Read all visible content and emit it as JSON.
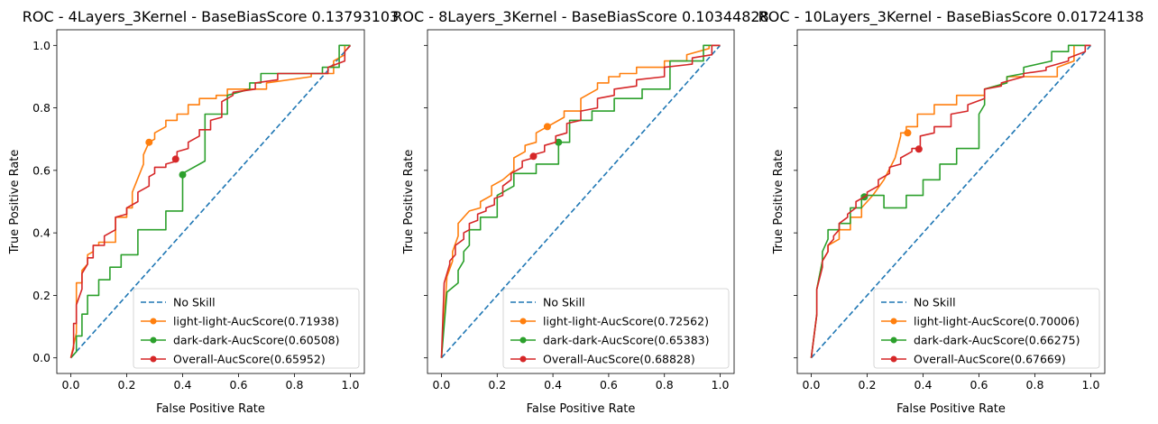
{
  "figure": {
    "panels": [
      {
        "title": "ROC - 4Layers_3Kernel - BaseBiasScore 0.13793103"
      },
      {
        "title": "ROC - 8Layers_3Kernel - BaseBiasScore 0.10344828"
      },
      {
        "title": "ROC - 10Layers_3Kernel - BaseBiasScore 0.01724138"
      }
    ]
  },
  "chart_data": [
    {
      "type": "line",
      "title": "ROC - 4Layers_3Kernel - BaseBiasScore 0.13793103",
      "xlabel": "False Positive Rate",
      "ylabel": "True Positive Rate",
      "xlim": [
        0,
        1
      ],
      "ylim": [
        0,
        1
      ],
      "xticks": [
        "0.0",
        "0.2",
        "0.4",
        "0.6",
        "0.8",
        "1.0"
      ],
      "yticks": [
        "0.0",
        "0.2",
        "0.4",
        "0.6",
        "0.8",
        "1.0"
      ],
      "grid": false,
      "legend": "lower right",
      "series": [
        {
          "name": "No Skill",
          "color": "#1f77b4",
          "dashed": true,
          "x": [
            0,
            1
          ],
          "y": [
            0,
            1
          ]
        },
        {
          "name": "light-light-AucScore(0.71938)",
          "color": "#ff7f0e",
          "x": [
            0,
            0.02,
            0.02,
            0.04,
            0.04,
            0.06,
            0.06,
            0.08,
            0.08,
            0.1,
            0.1,
            0.16,
            0.16,
            0.2,
            0.2,
            0.22,
            0.22,
            0.26,
            0.26,
            0.28,
            0.28,
            0.3,
            0.3,
            0.34,
            0.34,
            0.38,
            0.38,
            0.42,
            0.42,
            0.46,
            0.46,
            0.52,
            0.52,
            0.56,
            0.56,
            0.7,
            0.7,
            0.86,
            0.86,
            0.94,
            0.94,
            0.98,
            0.98,
            1.0
          ],
          "y": [
            0,
            0.08,
            0.24,
            0.24,
            0.28,
            0.3,
            0.33,
            0.34,
            0.36,
            0.36,
            0.37,
            0.37,
            0.45,
            0.45,
            0.48,
            0.48,
            0.53,
            0.62,
            0.65,
            0.69,
            0.69,
            0.7,
            0.72,
            0.74,
            0.76,
            0.76,
            0.78,
            0.78,
            0.81,
            0.81,
            0.83,
            0.83,
            0.84,
            0.84,
            0.86,
            0.86,
            0.88,
            0.9,
            0.91,
            0.91,
            0.95,
            0.97,
            1.0,
            1.0
          ],
          "marker": {
            "x": 0.28,
            "y": 0.69
          }
        },
        {
          "name": "dark-dark-AucScore(0.60508)",
          "color": "#2ca02c",
          "x": [
            0,
            0.02,
            0.02,
            0.04,
            0.04,
            0.06,
            0.06,
            0.1,
            0.1,
            0.14,
            0.14,
            0.18,
            0.18,
            0.24,
            0.24,
            0.34,
            0.34,
            0.4,
            0.4,
            0.48,
            0.48,
            0.56,
            0.56,
            0.64,
            0.64,
            0.68,
            0.68,
            0.9,
            0.9,
            0.96,
            0.96,
            1.0
          ],
          "y": [
            0,
            0.02,
            0.07,
            0.07,
            0.14,
            0.14,
            0.2,
            0.2,
            0.25,
            0.25,
            0.29,
            0.29,
            0.33,
            0.33,
            0.41,
            0.41,
            0.47,
            0.47,
            0.59,
            0.63,
            0.78,
            0.78,
            0.84,
            0.86,
            0.88,
            0.88,
            0.91,
            0.91,
            0.93,
            0.93,
            1.0,
            1.0
          ],
          "marker": {
            "x": 0.4,
            "y": 0.586
          }
        },
        {
          "name": "Overall-AucScore(0.65952)",
          "color": "#d62728",
          "x": [
            0,
            0.01,
            0.01,
            0.02,
            0.02,
            0.04,
            0.04,
            0.06,
            0.06,
            0.08,
            0.08,
            0.12,
            0.12,
            0.16,
            0.16,
            0.2,
            0.2,
            0.24,
            0.24,
            0.28,
            0.28,
            0.3,
            0.3,
            0.34,
            0.34,
            0.38,
            0.38,
            0.42,
            0.42,
            0.46,
            0.46,
            0.5,
            0.5,
            0.54,
            0.54,
            0.58,
            0.58,
            0.66,
            0.66,
            0.74,
            0.74,
            0.92,
            0.92,
            0.98,
            0.98,
            1.0
          ],
          "y": [
            0,
            0.03,
            0.11,
            0.11,
            0.17,
            0.22,
            0.27,
            0.3,
            0.32,
            0.32,
            0.36,
            0.36,
            0.39,
            0.41,
            0.45,
            0.46,
            0.48,
            0.5,
            0.53,
            0.55,
            0.58,
            0.59,
            0.61,
            0.61,
            0.62,
            0.63,
            0.66,
            0.67,
            0.69,
            0.71,
            0.73,
            0.73,
            0.76,
            0.77,
            0.82,
            0.84,
            0.85,
            0.86,
            0.88,
            0.89,
            0.91,
            0.91,
            0.93,
            0.95,
            0.98,
            1.0
          ],
          "marker": {
            "x": 0.375,
            "y": 0.636
          }
        }
      ]
    },
    {
      "type": "line",
      "title": "ROC - 8Layers_3Kernel - BaseBiasScore 0.10344828",
      "xlabel": "False Positive Rate",
      "ylabel": "True Positive Rate",
      "xlim": [
        0,
        1
      ],
      "ylim": [
        0,
        1
      ],
      "xticks": [
        "0.0",
        "0.2",
        "0.4",
        "0.6",
        "0.8",
        "1.0"
      ],
      "yticks": [],
      "grid": false,
      "legend": "lower right",
      "series": [
        {
          "name": "No Skill",
          "color": "#1f77b4",
          "dashed": true,
          "x": [
            0,
            1
          ],
          "y": [
            0,
            1
          ]
        },
        {
          "name": "light-light-AucScore(0.72562)",
          "color": "#ff7f0e",
          "x": [
            0,
            0.02,
            0.02,
            0.04,
            0.04,
            0.06,
            0.06,
            0.1,
            0.1,
            0.14,
            0.14,
            0.18,
            0.18,
            0.22,
            0.22,
            0.26,
            0.26,
            0.3,
            0.3,
            0.34,
            0.34,
            0.38,
            0.38,
            0.44,
            0.44,
            0.5,
            0.5,
            0.56,
            0.56,
            0.6,
            0.6,
            0.64,
            0.64,
            0.7,
            0.7,
            0.8,
            0.8,
            0.88,
            0.88,
            0.96,
            0.96,
            1.0
          ],
          "y": [
            0,
            0.26,
            0.26,
            0.31,
            0.34,
            0.39,
            0.43,
            0.47,
            0.47,
            0.48,
            0.5,
            0.52,
            0.55,
            0.57,
            0.57,
            0.6,
            0.64,
            0.66,
            0.68,
            0.69,
            0.72,
            0.74,
            0.74,
            0.77,
            0.79,
            0.79,
            0.83,
            0.86,
            0.88,
            0.88,
            0.9,
            0.9,
            0.91,
            0.91,
            0.93,
            0.93,
            0.95,
            0.95,
            0.97,
            0.99,
            1.0,
            1.0
          ],
          "marker": {
            "x": 0.38,
            "y": 0.74
          }
        },
        {
          "name": "dark-dark-AucScore(0.65383)",
          "color": "#2ca02c",
          "x": [
            0,
            0.02,
            0.02,
            0.06,
            0.06,
            0.08,
            0.08,
            0.1,
            0.1,
            0.14,
            0.14,
            0.2,
            0.2,
            0.26,
            0.26,
            0.34,
            0.34,
            0.42,
            0.42,
            0.46,
            0.46,
            0.54,
            0.54,
            0.62,
            0.62,
            0.72,
            0.72,
            0.82,
            0.82,
            0.94,
            0.94,
            1.0
          ],
          "y": [
            0,
            0.21,
            0.21,
            0.24,
            0.28,
            0.31,
            0.34,
            0.36,
            0.41,
            0.41,
            0.45,
            0.45,
            0.52,
            0.55,
            0.59,
            0.59,
            0.62,
            0.62,
            0.69,
            0.69,
            0.76,
            0.76,
            0.79,
            0.79,
            0.83,
            0.83,
            0.86,
            0.86,
            0.95,
            0.95,
            1.0,
            1.0
          ],
          "marker": {
            "x": 0.42,
            "y": 0.69
          }
        },
        {
          "name": "Overall-AucScore(0.68828)",
          "color": "#d62728",
          "x": [
            0,
            0.01,
            0.01,
            0.03,
            0.03,
            0.05,
            0.05,
            0.08,
            0.08,
            0.1,
            0.1,
            0.13,
            0.13,
            0.16,
            0.16,
            0.19,
            0.19,
            0.22,
            0.22,
            0.25,
            0.25,
            0.29,
            0.29,
            0.33,
            0.33,
            0.37,
            0.37,
            0.41,
            0.41,
            0.45,
            0.45,
            0.5,
            0.5,
            0.56,
            0.56,
            0.62,
            0.62,
            0.7,
            0.7,
            0.8,
            0.8,
            0.9,
            0.9,
            0.97,
            0.97,
            1.0
          ],
          "y": [
            0,
            0.24,
            0.24,
            0.3,
            0.31,
            0.33,
            0.36,
            0.38,
            0.4,
            0.41,
            0.43,
            0.44,
            0.46,
            0.47,
            0.48,
            0.49,
            0.51,
            0.52,
            0.55,
            0.57,
            0.59,
            0.61,
            0.63,
            0.64,
            0.65,
            0.66,
            0.68,
            0.69,
            0.71,
            0.72,
            0.75,
            0.76,
            0.79,
            0.8,
            0.83,
            0.84,
            0.86,
            0.87,
            0.89,
            0.9,
            0.93,
            0.94,
            0.96,
            0.97,
            1.0,
            1.0
          ],
          "marker": {
            "x": 0.33,
            "y": 0.645
          }
        }
      ]
    },
    {
      "type": "line",
      "title": "ROC - 10Layers_3Kernel - BaseBiasScore 0.01724138",
      "xlabel": "False Positive Rate",
      "ylabel": "True Positive Rate",
      "xlim": [
        0,
        1
      ],
      "ylim": [
        0,
        1
      ],
      "xticks": [
        "0.0",
        "0.2",
        "0.4",
        "0.6",
        "0.8",
        "1.0"
      ],
      "yticks": [],
      "grid": false,
      "legend": "lower right",
      "series": [
        {
          "name": "No Skill",
          "color": "#1f77b4",
          "dashed": true,
          "x": [
            0,
            1
          ],
          "y": [
            0,
            1
          ]
        },
        {
          "name": "light-light-AucScore(0.70006)",
          "color": "#ff7f0e",
          "x": [
            0,
            0.02,
            0.02,
            0.04,
            0.04,
            0.06,
            0.06,
            0.1,
            0.1,
            0.14,
            0.14,
            0.18,
            0.18,
            0.22,
            0.22,
            0.26,
            0.26,
            0.3,
            0.3,
            0.32,
            0.32,
            0.34,
            0.34,
            0.38,
            0.38,
            0.44,
            0.44,
            0.52,
            0.52,
            0.62,
            0.62,
            0.7,
            0.7,
            0.88,
            0.88,
            0.94,
            0.94,
            1.0
          ],
          "y": [
            0,
            0.14,
            0.22,
            0.31,
            0.31,
            0.34,
            0.36,
            0.38,
            0.41,
            0.41,
            0.45,
            0.45,
            0.48,
            0.52,
            0.52,
            0.57,
            0.57,
            0.64,
            0.64,
            0.71,
            0.72,
            0.72,
            0.74,
            0.74,
            0.78,
            0.78,
            0.81,
            0.81,
            0.84,
            0.84,
            0.86,
            0.88,
            0.9,
            0.9,
            0.93,
            0.95,
            1.0,
            1.0
          ],
          "marker": {
            "x": 0.345,
            "y": 0.72
          }
        },
        {
          "name": "dark-dark-AucScore(0.66275)",
          "color": "#2ca02c",
          "x": [
            0,
            0.02,
            0.02,
            0.04,
            0.04,
            0.06,
            0.06,
            0.1,
            0.1,
            0.14,
            0.14,
            0.18,
            0.18,
            0.26,
            0.26,
            0.34,
            0.34,
            0.4,
            0.4,
            0.46,
            0.46,
            0.52,
            0.52,
            0.6,
            0.6,
            0.62,
            0.62,
            0.7,
            0.7,
            0.76,
            0.76,
            0.86,
            0.86,
            0.92,
            0.92,
            1.0
          ],
          "y": [
            0,
            0.14,
            0.22,
            0.31,
            0.34,
            0.38,
            0.41,
            0.41,
            0.43,
            0.43,
            0.48,
            0.48,
            0.52,
            0.52,
            0.48,
            0.48,
            0.52,
            0.52,
            0.57,
            0.57,
            0.62,
            0.62,
            0.67,
            0.67,
            0.78,
            0.81,
            0.86,
            0.88,
            0.9,
            0.91,
            0.93,
            0.95,
            0.98,
            0.98,
            1.0,
            1.0
          ],
          "marker": {
            "x": 0.19,
            "y": 0.515
          }
        },
        {
          "name": "Overall-AucScore(0.67669)",
          "color": "#d62728",
          "x": [
            0,
            0.02,
            0.02,
            0.04,
            0.04,
            0.06,
            0.06,
            0.08,
            0.08,
            0.1,
            0.1,
            0.13,
            0.13,
            0.16,
            0.16,
            0.2,
            0.2,
            0.24,
            0.24,
            0.28,
            0.28,
            0.32,
            0.32,
            0.36,
            0.36,
            0.39,
            0.39,
            0.44,
            0.44,
            0.5,
            0.5,
            0.56,
            0.56,
            0.62,
            0.62,
            0.68,
            0.68,
            0.76,
            0.76,
            0.84,
            0.84,
            0.92,
            0.92,
            0.98,
            0.98,
            1.0
          ],
          "y": [
            0,
            0.14,
            0.22,
            0.29,
            0.31,
            0.34,
            0.36,
            0.38,
            0.39,
            0.41,
            0.43,
            0.45,
            0.46,
            0.48,
            0.5,
            0.52,
            0.53,
            0.55,
            0.57,
            0.59,
            0.61,
            0.62,
            0.64,
            0.66,
            0.67,
            0.67,
            0.71,
            0.72,
            0.74,
            0.74,
            0.78,
            0.79,
            0.81,
            0.83,
            0.86,
            0.87,
            0.88,
            0.9,
            0.91,
            0.92,
            0.93,
            0.95,
            0.96,
            0.98,
            1.0,
            1.0
          ],
          "marker": {
            "x": 0.385,
            "y": 0.668
          }
        }
      ]
    }
  ]
}
